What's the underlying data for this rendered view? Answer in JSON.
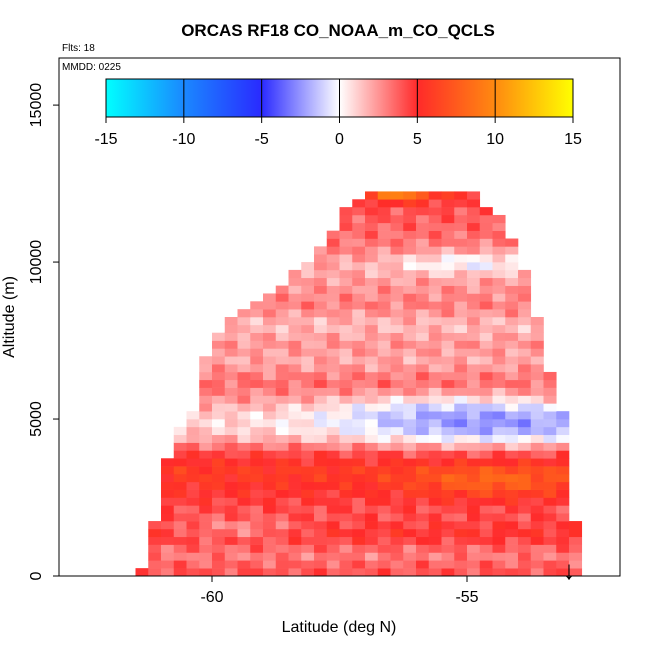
{
  "chart_data": {
    "type": "heatmap",
    "title": "ORCAS RF18 CO_NOAA_m_CO_QCLS",
    "flights_label": "Flts: 18",
    "date_label": "MMDD: 0225",
    "xlabel": "Latitude (deg N)",
    "ylabel": "Altitude (m)",
    "xlim": [
      -63,
      -52
    ],
    "ylim": [
      0,
      16500
    ],
    "x_ticks": [
      -60,
      -55
    ],
    "x_tick_labels": [
      "-60",
      "-55"
    ],
    "y_ticks": [
      0,
      5000,
      10000,
      15000
    ],
    "y_tick_labels": [
      "0",
      "5000",
      "10000",
      "15000"
    ],
    "colorbar": {
      "min": -15,
      "max": 15,
      "ticks": [
        -15,
        -10,
        -5,
        0,
        5,
        10,
        15
      ],
      "tick_labels": [
        "-15",
        "-10",
        "-5",
        "0",
        "5",
        "10",
        "15"
      ],
      "stops": [
        {
          "value": -15,
          "color": "#00ffff"
        },
        {
          "value": -10,
          "color": "#1a88ff"
        },
        {
          "value": -5,
          "color": "#2a2aff"
        },
        {
          "value": 0,
          "color": "#ffffff"
        },
        {
          "value": 5,
          "color": "#ff2a2a"
        },
        {
          "value": 10,
          "color": "#ff8a10"
        },
        {
          "value": 15,
          "color": "#ffff00"
        }
      ]
    },
    "grid": {
      "lat_step": 0.25,
      "alt_step": 250,
      "envelope": [
        [
          0,
          -61.4,
          -52.8
        ],
        [
          600,
          -61.3,
          -52.8
        ],
        [
          1200,
          -61.2,
          -52.8
        ],
        [
          2000,
          -61.1,
          -52.9
        ],
        [
          2600,
          -61.0,
          -52.9
        ],
        [
          3500,
          -60.9,
          -53.0
        ],
        [
          4500,
          -60.7,
          -53.0
        ],
        [
          5500,
          -60.3,
          -53.2
        ],
        [
          6500,
          -60.2,
          -53.4
        ],
        [
          7500,
          -60.0,
          -53.4
        ],
        [
          8500,
          -59.4,
          -53.7
        ],
        [
          9500,
          -58.5,
          -53.8
        ],
        [
          10300,
          -58.0,
          -54.0
        ],
        [
          11000,
          -57.6,
          -54.2
        ],
        [
          11700,
          -57.4,
          -54.5
        ],
        [
          12300,
          -56.8,
          -55.0
        ]
      ],
      "bands": [
        {
          "alt": 200,
          "value": 4
        },
        {
          "alt": 700,
          "value": 3
        },
        {
          "alt": 1300,
          "value": 5
        },
        {
          "alt": 2000,
          "value": 4
        },
        {
          "alt": 2700,
          "value": 5
        },
        {
          "alt": 3300,
          "value": 6
        },
        {
          "alt": 3900,
          "value": 4.5
        },
        {
          "alt": 4500,
          "value": 1.5
        },
        {
          "alt": 5000,
          "value": 1
        },
        {
          "alt": 5600,
          "value": 2.5
        },
        {
          "alt": 6200,
          "value": 3.5
        },
        {
          "alt": 6800,
          "value": 2
        },
        {
          "alt": 7400,
          "value": 2.5
        },
        {
          "alt": 8000,
          "value": 1.5
        },
        {
          "alt": 8600,
          "value": 3
        },
        {
          "alt": 9200,
          "value": 2.5
        },
        {
          "alt": 9800,
          "value": 2
        },
        {
          "alt": 10400,
          "value": 3
        },
        {
          "alt": 11000,
          "value": 3.5
        },
        {
          "alt": 11600,
          "value": 4
        },
        {
          "alt": 12200,
          "value": 5
        }
      ],
      "hotspots": [
        {
          "lat": -54.5,
          "alt": 4800,
          "dlat": 3.0,
          "dalt": 700,
          "value": -3.5
        },
        {
          "lat": -55.5,
          "alt": 5400,
          "dlat": 2.5,
          "dalt": 400,
          "value": -1.5
        },
        {
          "lat": -54.5,
          "alt": 3000,
          "dlat": 1.6,
          "dalt": 500,
          "value": 2.5
        },
        {
          "lat": -56.3,
          "alt": 12200,
          "dlat": 0.6,
          "dalt": 250,
          "value": 5
        },
        {
          "lat": -55.0,
          "alt": 10000,
          "dlat": 1.5,
          "dalt": 350,
          "value": -2.5
        },
        {
          "lat": -59.5,
          "alt": 1500,
          "dlat": 1.2,
          "dalt": 300,
          "value": -2
        }
      ]
    }
  },
  "annotation": {
    "arrow_latitude": -53.0,
    "arrow_glyph": "↓"
  }
}
